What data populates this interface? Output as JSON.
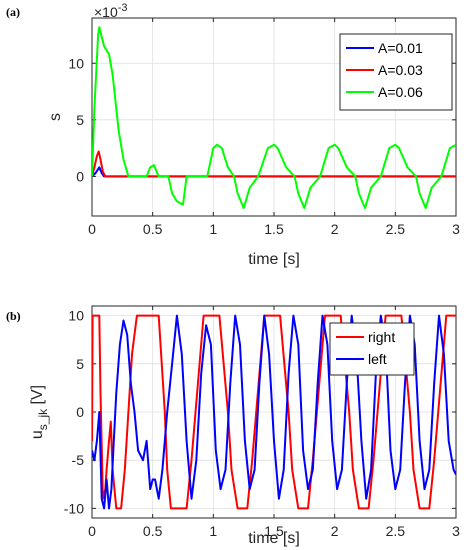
{
  "chart_data": [
    {
      "panel_label": "(a)",
      "type": "line",
      "xlabel": "time [s]",
      "ylabel": "s",
      "exponent_label": "×10",
      "exponent_power": "-3",
      "xlim": [
        0,
        3
      ],
      "ylim": [
        -0.0035,
        0.014
      ],
      "xticks": [
        0,
        0.5,
        1,
        1.5,
        2,
        2.5,
        3
      ],
      "xtick_labels": [
        "0",
        "0.5",
        "1",
        "1.5",
        "2",
        "2.5",
        "3"
      ],
      "yticks": [
        0,
        0.005,
        0.01
      ],
      "ytick_labels": [
        "0",
        "5",
        "10"
      ],
      "grid": true,
      "legend_position": "top-right",
      "legend": [
        "A=0.01",
        "A=0.03",
        "A=0.06"
      ],
      "series": [
        {
          "name": "A=0.01",
          "color": "#0000ff",
          "x": [
            0,
            0.03,
            0.06,
            0.08,
            0.1,
            3.0
          ],
          "y": [
            0,
            0.0003,
            0.0008,
            0.0003,
            0,
            0
          ]
        },
        {
          "name": "A=0.03",
          "color": "#ff0000",
          "x": [
            0,
            0.02,
            0.04,
            0.055,
            0.07,
            0.09,
            0.11,
            3.0
          ],
          "y": [
            0,
            0.0008,
            0.0018,
            0.0022,
            0.0015,
            0.0004,
            0,
            0
          ]
        },
        {
          "name": "A=0.06",
          "color": "#00ff00",
          "x": [
            0,
            0.02,
            0.05,
            0.06,
            0.1,
            0.14,
            0.17,
            0.22,
            0.26,
            0.3,
            0.45,
            0.48,
            0.51,
            0.55,
            0.63,
            0.66,
            0.7,
            0.75,
            0.78,
            0.95,
            1.0,
            1.03,
            1.07,
            1.12,
            1.17,
            1.2,
            1.25,
            1.3,
            1.37,
            1.45,
            1.5,
            1.53,
            1.6,
            1.67,
            1.7,
            1.75,
            1.8,
            1.88,
            1.95,
            2.0,
            2.03,
            2.1,
            2.17,
            2.2,
            2.25,
            2.3,
            2.38,
            2.45,
            2.5,
            2.53,
            2.6,
            2.67,
            2.7,
            2.75,
            2.8,
            2.88,
            2.95,
            3.0
          ],
          "y": [
            0,
            0.006,
            0.0125,
            0.0132,
            0.0115,
            0.0108,
            0.009,
            0.004,
            0.0015,
            0,
            0,
            0.0008,
            0.001,
            0,
            0,
            -0.0015,
            -0.0022,
            -0.0025,
            0,
            0,
            0.0025,
            0.0028,
            0.0025,
            0.0008,
            0,
            -0.0015,
            -0.0028,
            -0.001,
            0,
            0.0025,
            0.0028,
            0.0025,
            0.0008,
            0,
            -0.0015,
            -0.0028,
            -0.001,
            0,
            0.0025,
            0.0028,
            0.0025,
            0.0008,
            0,
            -0.0015,
            -0.0028,
            -0.001,
            0,
            0.0025,
            0.0028,
            0.0025,
            0.0008,
            0,
            -0.0015,
            -0.0028,
            -0.001,
            0,
            0.0025,
            0.0028
          ]
        }
      ]
    },
    {
      "panel_label": "(b)",
      "type": "line",
      "xlabel": "time [s]",
      "ylabel": "u",
      "ylabel_subscript": "s_jk",
      "ylabel_unit": "[V]",
      "xlim": [
        0,
        3
      ],
      "ylim": [
        -11,
        11
      ],
      "xticks": [
        0,
        0.5,
        1,
        1.5,
        2,
        2.5,
        3
      ],
      "xtick_labels": [
        "0",
        "0.5",
        "1",
        "1.5",
        "2",
        "2.5",
        "3"
      ],
      "yticks": [
        -10,
        -5,
        0,
        5,
        10
      ],
      "ytick_labels": [
        "-10",
        "-5",
        "0",
        "5",
        "10"
      ],
      "grid": true,
      "legend_position": "top-right",
      "legend": [
        "right",
        "left"
      ],
      "series": [
        {
          "name": "right",
          "color": "#ff0000",
          "x": [
            0,
            0.005,
            0.03,
            0.06,
            0.07,
            0.09,
            0.11,
            0.12,
            0.14,
            0.155,
            0.17,
            0.2,
            0.24,
            0.27,
            0.3,
            0.33,
            0.37,
            0.42,
            0.5,
            0.55,
            0.6,
            0.62,
            0.65,
            0.72,
            0.78,
            0.82,
            0.92,
            1.0,
            1.05,
            1.12,
            1.15,
            1.2,
            1.28,
            1.32,
            1.42,
            1.5,
            1.55,
            1.62,
            1.65,
            1.7,
            1.78,
            1.82,
            1.92,
            2.0,
            2.05,
            2.12,
            2.15,
            2.2,
            2.28,
            2.32,
            2.42,
            2.5,
            2.55,
            2.62,
            2.65,
            2.7,
            2.78,
            2.82,
            2.92,
            2.96,
            3.0
          ],
          "y": [
            -3,
            10,
            10,
            10,
            2,
            -9,
            -8,
            -6,
            -3,
            -1,
            -6,
            -10,
            -10,
            -6,
            0,
            6,
            10,
            10,
            10,
            10,
            0,
            -6,
            -10,
            -10,
            -10,
            -5,
            10,
            10,
            10,
            0,
            -6,
            -10,
            -10,
            -5,
            10,
            10,
            10,
            0,
            -6,
            -10,
            -10,
            -5,
            10,
            10,
            10,
            0,
            -6,
            -10,
            -10,
            -5,
            10,
            10,
            10,
            0,
            -6,
            -10,
            -10,
            -5,
            10,
            10,
            10
          ]
        },
        {
          "name": "left",
          "color": "#0000ff",
          "x": [
            0,
            0.02,
            0.04,
            0.06,
            0.08,
            0.1,
            0.12,
            0.14,
            0.16,
            0.18,
            0.2,
            0.23,
            0.26,
            0.29,
            0.32,
            0.35,
            0.38,
            0.42,
            0.45,
            0.48,
            0.5,
            0.52,
            0.55,
            0.58,
            0.62,
            0.66,
            0.7,
            0.74,
            0.78,
            0.82,
            0.86,
            0.9,
            0.94,
            0.98,
            1.02,
            1.06,
            1.1,
            1.14,
            1.18,
            1.22,
            1.26,
            1.3,
            1.34,
            1.38,
            1.42,
            1.46,
            1.5,
            1.54,
            1.58,
            1.62,
            1.66,
            1.7,
            1.74,
            1.78,
            1.82,
            1.86,
            1.9,
            1.94,
            1.98,
            2.02,
            2.06,
            2.1,
            2.14,
            2.18,
            2.22,
            2.26,
            2.3,
            2.34,
            2.38,
            2.42,
            2.46,
            2.5,
            2.54,
            2.58,
            2.62,
            2.66,
            2.7,
            2.74,
            2.78,
            2.82,
            2.86,
            2.9,
            2.94,
            2.98,
            3.0
          ],
          "y": [
            -4,
            -5,
            -3,
            0,
            -9,
            -10,
            -7,
            -10,
            -8,
            -3,
            2,
            7,
            9.5,
            8,
            3,
            0,
            -4,
            -5,
            -3,
            -8,
            -7,
            -7,
            -9,
            -6,
            0,
            5,
            10,
            6,
            -3,
            -9,
            -5,
            4,
            9,
            7,
            -4,
            -8,
            -6,
            3,
            10,
            7,
            -3,
            -8,
            -6,
            3,
            10,
            6,
            -3,
            -9,
            -6,
            4,
            10,
            7,
            -4,
            -8,
            -6,
            3,
            10,
            7,
            -3,
            -8,
            -6,
            3,
            10,
            6,
            -3,
            -9,
            -6,
            4,
            10,
            7,
            -4,
            -8,
            -6,
            3,
            10,
            7,
            -3,
            -8,
            -6,
            3,
            10,
            6,
            -3,
            -6,
            -6.5
          ]
        }
      ]
    }
  ]
}
